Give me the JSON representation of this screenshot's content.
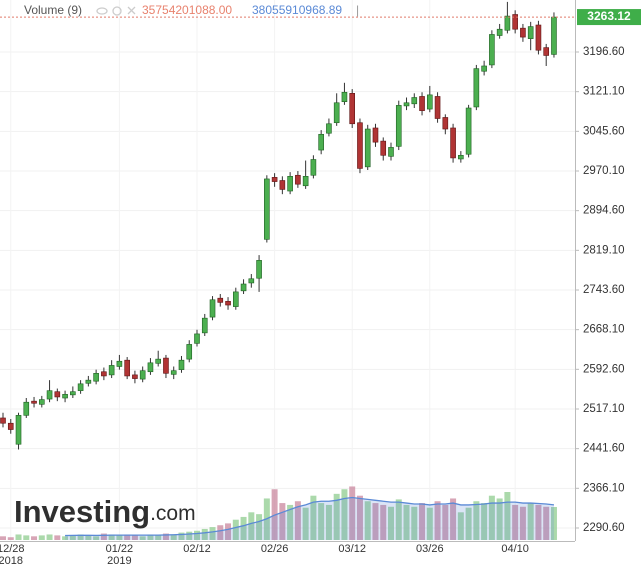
{
  "chart_data": {
    "type": "candlestick",
    "legend": {
      "name": "Volume (9)",
      "volume": {
        "value": 35754201088,
        "label": "35754201088.00"
      },
      "ma": 38055910968.89,
      "separator": "|"
    },
    "watermark": "Investing",
    "watermark_suffix": ".com",
    "last_price": 3263.12,
    "categories": [
      null,
      "12/28",
      null,
      null,
      null,
      null,
      null,
      null,
      null,
      null,
      null,
      null,
      null,
      null,
      null,
      "01/22",
      null,
      null,
      null,
      null,
      null,
      null,
      null,
      null,
      null,
      "02/12",
      null,
      null,
      null,
      null,
      null,
      null,
      null,
      null,
      null,
      "02/26",
      null,
      null,
      null,
      null,
      null,
      null,
      null,
      null,
      null,
      "03/12",
      null,
      null,
      null,
      null,
      null,
      null,
      null,
      null,
      null,
      "03/26",
      null,
      null,
      null,
      null,
      null,
      null,
      null,
      null,
      null,
      null,
      "04/10",
      null,
      null,
      null,
      null,
      null
    ],
    "category_years": [
      null,
      "2018",
      null,
      null,
      null,
      null,
      null,
      null,
      null,
      null,
      null,
      null,
      null,
      null,
      null,
      "2019",
      null,
      null,
      null,
      null,
      null,
      null,
      null,
      null,
      null,
      null,
      null,
      null,
      null,
      null,
      null,
      null,
      null,
      null,
      null,
      null,
      null,
      null,
      null,
      null,
      null,
      null,
      null,
      null,
      null,
      null,
      null,
      null,
      null,
      null,
      null,
      null,
      null,
      null,
      null,
      null,
      null,
      null,
      null,
      null,
      null,
      null,
      null,
      null,
      null,
      null,
      null,
      null,
      null,
      null,
      null,
      null
    ],
    "open": [
      2500,
      2490,
      2450,
      2505,
      2532,
      2526,
      2536,
      2550,
      2538,
      2544,
      2552,
      2566,
      2570,
      2588,
      2582,
      2598,
      2610,
      2582,
      2574,
      2588,
      2604,
      2614,
      2583,
      2592,
      2612,
      2642,
      2662,
      2692,
      2728,
      2722,
      2712,
      2742,
      2757,
      2766,
      2840,
      2958,
      2952,
      2932,
      2962,
      2942,
      2962,
      3010,
      3042,
      3062,
      3102,
      3118,
      3062,
      2978,
      3052,
      3027,
      2998,
      3017,
      3094,
      3098,
      3112,
      3088,
      3112,
      3072,
      3052,
      2993,
      3002,
      3092,
      3160,
      3172,
      3228,
      3238,
      3268,
      3242,
      3222,
      3248,
      3205,
      3192
    ],
    "high": [
      2510,
      2498,
      2510,
      2538,
      2540,
      2542,
      2572,
      2556,
      2552,
      2560,
      2572,
      2580,
      2592,
      2596,
      2610,
      2620,
      2616,
      2590,
      2598,
      2614,
      2628,
      2620,
      2598,
      2618,
      2648,
      2668,
      2698,
      2732,
      2736,
      2730,
      2748,
      2764,
      2774,
      2810,
      2962,
      2966,
      2960,
      2968,
      2970,
      2990,
      3000,
      3048,
      3070,
      3118,
      3138,
      3126,
      3070,
      3058,
      3060,
      3034,
      3024,
      3104,
      3110,
      3118,
      3120,
      3132,
      3120,
      3078,
      3060,
      3008,
      3096,
      3172,
      3180,
      3238,
      3250,
      3292,
      3276,
      3250,
      3254,
      3256,
      3212,
      3272
    ],
    "low": [
      2482,
      2470,
      2440,
      2500,
      2520,
      2520,
      2530,
      2532,
      2530,
      2538,
      2546,
      2560,
      2564,
      2572,
      2576,
      2592,
      2574,
      2566,
      2568,
      2582,
      2598,
      2576,
      2574,
      2586,
      2606,
      2636,
      2656,
      2686,
      2712,
      2706,
      2706,
      2736,
      2748,
      2740,
      2834,
      2940,
      2926,
      2926,
      2938,
      2936,
      2956,
      3002,
      3036,
      3056,
      3096,
      3052,
      2966,
      2972,
      3016,
      2990,
      2990,
      3010,
      3086,
      3090,
      3076,
      3082,
      3062,
      3040,
      2986,
      2986,
      2996,
      3086,
      3152,
      3166,
      3222,
      3232,
      3232,
      3216,
      3200,
      3192,
      3170,
      3186
    ],
    "close": [
      2490,
      2478,
      2505,
      2530,
      2528,
      2535,
      2552,
      2540,
      2545,
      2550,
      2565,
      2572,
      2585,
      2580,
      2600,
      2608,
      2580,
      2575,
      2590,
      2605,
      2612,
      2585,
      2590,
      2610,
      2640,
      2660,
      2690,
      2725,
      2720,
      2715,
      2740,
      2755,
      2765,
      2800,
      2955,
      2950,
      2935,
      2960,
      2945,
      2960,
      2992,
      3040,
      3060,
      3100,
      3120,
      3060,
      2975,
      3050,
      3025,
      3000,
      3015,
      3095,
      3100,
      3110,
      3085,
      3115,
      3070,
      3050,
      2995,
      3000,
      3090,
      3165,
      3170,
      3230,
      3240,
      3265,
      3240,
      3225,
      3245,
      3200,
      3190,
      3263.12
    ],
    "volume": [
      4000000000.0,
      3000000000.0,
      6000000000.0,
      5000000000.0,
      4000000000.0,
      5000000000.0,
      6000000000.0,
      5000000000.0,
      4000000000.0,
      5000000000.0,
      6000000000.0,
      5000000000.0,
      4000000000.0,
      7000000000.0,
      6000000000.0,
      5000000000.0,
      6000000000.0,
      5000000000.0,
      4000000000.0,
      6000000000.0,
      5000000000.0,
      7000000000.0,
      6000000000.0,
      8000000000.0,
      9000000000.0,
      10000000000.0,
      12000000000.0,
      14000000000.0,
      16000000000.0,
      18000000000.0,
      22000000000.0,
      25000000000.0,
      30000000000.0,
      28000000000.0,
      45000000000.0,
      55000000000.0,
      40000000000.0,
      38000000000.0,
      42000000000.0,
      35000000000.0,
      48000000000.0,
      40000000000.0,
      38000000000.0,
      50000000000.0,
      55000000000.0,
      58000000000.0,
      48000000000.0,
      42000000000.0,
      40000000000.0,
      38000000000.0,
      36000000000.0,
      44000000000.0,
      38000000000.0,
      36000000000.0,
      40000000000.0,
      35000000000.0,
      42000000000.0,
      38000000000.0,
      45000000000.0,
      30000000000.0,
      35000000000.0,
      42000000000.0,
      40000000000.0,
      48000000000.0,
      45000000000.0,
      52000000000.0,
      38000000000.0,
      36000000000.0,
      40000000000.0,
      38000000000.0,
      36000000000.0,
      35754201088
    ],
    "volume_ma": [
      null,
      null,
      null,
      null,
      null,
      null,
      null,
      null,
      4800000000.0,
      5000000000.0,
      5100000000.0,
      5100000000.0,
      5000000000.0,
      5100000000.0,
      5300000000.0,
      5300000000.0,
      5300000000.0,
      5300000000.0,
      5300000000.0,
      5300000000.0,
      5300000000.0,
      5500000000.0,
      5700000000.0,
      6000000000.0,
      6500000000.0,
      7000000000.0,
      7800000000.0,
      8800000000.0,
      10000000000.0,
      11500000000.0,
      13500000000.0,
      15500000000.0,
      18000000000.0,
      20000000000.0,
      23000000000.0,
      27000000000.0,
      30000000000.0,
      33000000000.0,
      36000000000.0,
      38000000000.0,
      41000000000.0,
      42000000000.0,
      42000000000.0,
      43000000000.0,
      45000000000.0,
      46000000000.0,
      45000000000.0,
      44000000000.0,
      43000000000.0,
      42000000000.0,
      41000000000.0,
      41000000000.0,
      40000000000.0,
      39000000000.0,
      39000000000.0,
      38000000000.0,
      39000000000.0,
      39000000000.0,
      40000000000.0,
      38000000000.0,
      38000000000.0,
      38500000000.0,
      39000000000.0,
      40000000000.0,
      40000000000.0,
      41000000000.0,
      41000000000.0,
      40000000000.0,
      40000000000.0,
      39500000000.0,
      39000000000.0,
      38055910968.89
    ],
    "volume_lim": [
      0,
      65000000000.0
    ],
    "ylim": [
      2258.2,
      3295.6
    ],
    "yticks": [
      {
        "value": 3196.6,
        "label": "3196.60"
      },
      {
        "value": 3121.1,
        "label": "3121.10"
      },
      {
        "value": 3045.6,
        "label": "3045.60"
      },
      {
        "value": 2970.1,
        "label": "2970.10"
      },
      {
        "value": 2894.6,
        "label": "2894.60"
      },
      {
        "value": 2819.1,
        "label": "2819.10"
      },
      {
        "value": 2743.6,
        "label": "2743.60"
      },
      {
        "value": 2668.1,
        "label": "2668.10"
      },
      {
        "value": 2592.6,
        "label": "2592.60"
      },
      {
        "value": 2517.1,
        "label": "2517.10"
      },
      {
        "value": 2441.6,
        "label": "2441.60"
      },
      {
        "value": 2366.1,
        "label": "2366.10"
      },
      {
        "value": 2290.6,
        "label": "2290.60"
      }
    ],
    "grid": true,
    "up_color": "#4caf50",
    "down_color": "#b03434",
    "volume_up_color": "#8fcc8f",
    "volume_down_color": "#c9879e",
    "ma_color": "#5b8ad6",
    "price_line_color": "#e07a6a",
    "price_box_color": "#3fae49"
  }
}
